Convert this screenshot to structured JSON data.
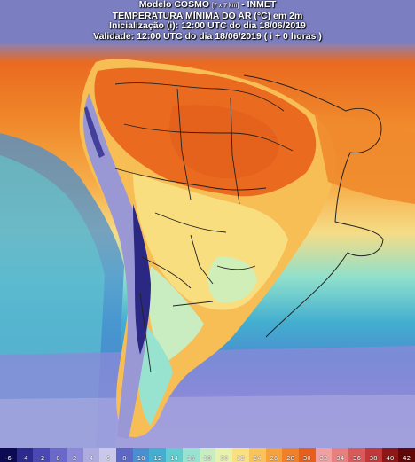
{
  "header": {
    "line1_prefix": "Modelo COSMO",
    "line1_res": "[7 x 7 km]",
    "line1_suffix": "- INMET",
    "line2": "TEMPERATURA MÍNIMA DO AR (°C) em 2m",
    "line3": "Inicialização (i): 12:00 UTC do dia 18/06/2019",
    "line4": "Validade: 12:00 UTC do dia 18/06/2019 ( i + 0 horas )"
  },
  "legend": {
    "ticks": [
      "-6",
      "-4",
      "-2",
      "0",
      "2",
      "4",
      "6",
      "8",
      "10",
      "12",
      "14",
      "16",
      "18",
      "20",
      "22",
      "24",
      "26",
      "28",
      "30",
      "32",
      "34",
      "36",
      "38",
      "40",
      "42"
    ],
    "colors": [
      "#0c0a52",
      "#2c2a8c",
      "#4a48b4",
      "#6a68c8",
      "#8c8ad8",
      "#aeacdf",
      "#c9c8ea",
      "#5d68c4",
      "#4a8fcf",
      "#43aecf",
      "#61cdd0",
      "#97e3cf",
      "#c9ecc0",
      "#e8f2ac",
      "#f9e080",
      "#f9c25a",
      "#f6a23c",
      "#f0802a",
      "#e4601c",
      "#f0a0a0",
      "#e88080",
      "#d85a5a",
      "#c03838",
      "#8c1818",
      "#600808"
    ]
  },
  "map": {
    "ocean_cold": "#7f86cf",
    "ocean_cool": "#4aa8d2",
    "ocean_mild": "#8fe0cc",
    "ocean_warm": "#f6b04c",
    "ocean_hot": "#f08a2c",
    "land_hot": "#ea6a20",
    "land_warm": "#f7be56",
    "land_mild": "#f9de80",
    "land_cool": "#cfeeb8",
    "andes": "#9a98d4",
    "andes_high": "#2a2882",
    "header_band": "#7a7ec0"
  }
}
